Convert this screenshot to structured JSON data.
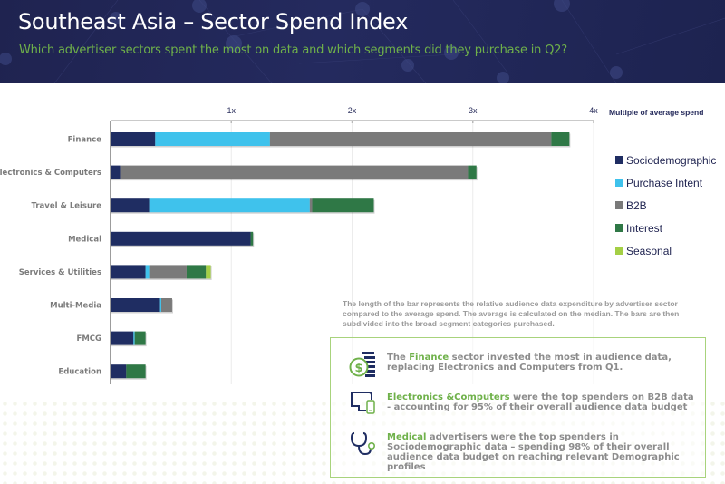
{
  "header": {
    "title": "Southeast Asia – Sector Spend Index",
    "subtitle": "Which advertiser sectors spent the most on data and which segments did they purchase in Q2?"
  },
  "colors": {
    "Sociodemographic": "#1f2d62",
    "Purchase Intent": "#3fc2ec",
    "B2B": "#7a7a7a",
    "Interest": "#2f7846",
    "Seasonal": "#a4cf45",
    "accent_green": "#6fb14a",
    "header_bg": "#1f2350"
  },
  "chart_data": {
    "type": "bar",
    "orientation": "horizontal",
    "stacked": true,
    "title": "Southeast Asia – Sector Spend Index",
    "xlabel": "Multiple of average spend",
    "ylabel": "",
    "xlim": [
      0,
      4
    ],
    "x_ticks": [
      {
        "value": 1,
        "label": "1x"
      },
      {
        "value": 2,
        "label": "2x"
      },
      {
        "value": 3,
        "label": "3x"
      },
      {
        "value": 4,
        "label": "4x"
      }
    ],
    "grid": true,
    "legend_position": "right",
    "categories": [
      "Finance",
      "Electronics & Computers",
      "Travel & Leisure",
      "Medical",
      "Services & Utilities",
      "Multi-Media",
      "FMCG",
      "Education"
    ],
    "series": [
      {
        "name": "Sociodemographic",
        "values": [
          0.37,
          0.08,
          0.32,
          1.16,
          0.29,
          0.41,
          0.19,
          0.13
        ]
      },
      {
        "name": "Purchase Intent",
        "values": [
          0.95,
          0.0,
          1.33,
          0.0,
          0.03,
          0.01,
          0.01,
          0.0
        ]
      },
      {
        "name": "B2B",
        "values": [
          2.33,
          2.88,
          0.02,
          0.0,
          0.31,
          0.09,
          0.0,
          0.0
        ]
      },
      {
        "name": "Interest",
        "values": [
          0.15,
          0.07,
          0.51,
          0.02,
          0.16,
          0.0,
          0.09,
          0.16
        ]
      },
      {
        "name": "Seasonal",
        "values": [
          0.0,
          0.0,
          0.0,
          0.0,
          0.04,
          0.0,
          0.0,
          0.0
        ]
      }
    ]
  },
  "note": "The length of the bar represents the relative audience data expenditure by advertiser sector compared to the average spend. The average is calculated on the median. The bars are then subdivided into the broad segment categories purchased.",
  "insights": [
    {
      "icon": "money-stack-icon",
      "highlight": "Finance",
      "before": "The ",
      "after": " sector invested the most in audience data, replacing Electronics and Computers from Q1."
    },
    {
      "icon": "computer-device-icon",
      "highlight": "Electronics &Computers",
      "before": "",
      "after": " were the top spenders on B2B data - accounting for 95% of their overall audience data budget"
    },
    {
      "icon": "stethoscope-icon",
      "highlight": "Medical",
      "before": "",
      "after": " advertisers were the top spenders in Sociodemographic data – spending 98% of their overall audience data budget on reaching relevant Demographic profiles"
    }
  ]
}
